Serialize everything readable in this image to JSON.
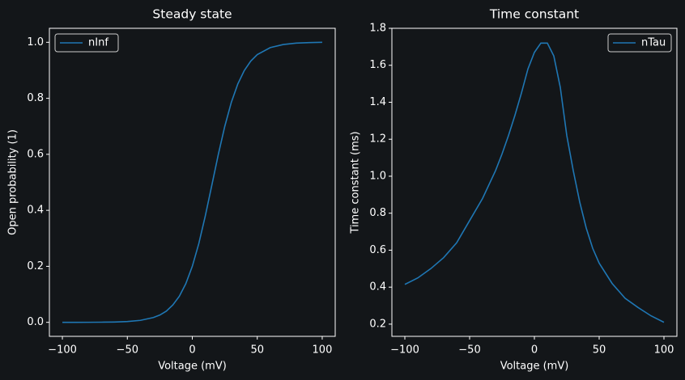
{
  "chart_data": [
    {
      "type": "line",
      "title": "Steady state",
      "xlabel": "Voltage (mV)",
      "ylabel": "Open probability (1)",
      "x": [
        -100,
        -90,
        -80,
        -70,
        -60,
        -50,
        -40,
        -30,
        -25,
        -20,
        -15,
        -10,
        -5,
        0,
        5,
        10,
        15,
        20,
        25,
        30,
        35,
        40,
        45,
        50,
        60,
        70,
        80,
        90,
        100
      ],
      "series": [
        {
          "name": "nInf",
          "color": "#1f77b4",
          "values": [
            0.0,
            0.0001,
            0.0002,
            0.0005,
            0.0012,
            0.0029,
            0.007,
            0.017,
            0.026,
            0.04,
            0.062,
            0.093,
            0.138,
            0.2,
            0.281,
            0.38,
            0.489,
            0.599,
            0.7,
            0.785,
            0.851,
            0.899,
            0.933,
            0.956,
            0.981,
            0.992,
            0.997,
            0.999,
            1.0
          ]
        }
      ],
      "xlim": [
        -110,
        110
      ],
      "xticks": [
        {
          "value": -100,
          "label": "−100"
        },
        {
          "value": -50,
          "label": "−50"
        },
        0,
        50,
        100
      ],
      "ylim": [
        -0.05,
        1.05
      ],
      "yticks": [
        {
          "value": 0,
          "label": "0.0"
        },
        0.2,
        0.4,
        0.6,
        0.8,
        {
          "value": 1,
          "label": "1.0"
        }
      ],
      "legend": "upper left"
    },
    {
      "type": "line",
      "title": "Time constant",
      "xlabel": "Voltage (mV)",
      "ylabel": "Time constant (ms)",
      "x": [
        -100,
        -90,
        -80,
        -70,
        -60,
        -50,
        -40,
        -30,
        -25,
        -20,
        -15,
        -10,
        -5,
        0,
        5,
        10,
        15,
        20,
        25,
        30,
        35,
        40,
        45,
        50,
        60,
        70,
        80,
        90,
        100
      ],
      "series": [
        {
          "name": "nTau",
          "color": "#1f77b4",
          "values": [
            0.415,
            0.45,
            0.5,
            0.56,
            0.64,
            0.76,
            0.88,
            1.03,
            1.12,
            1.22,
            1.33,
            1.45,
            1.58,
            1.67,
            1.72,
            1.72,
            1.65,
            1.48,
            1.22,
            1.03,
            0.86,
            0.72,
            0.61,
            0.53,
            0.42,
            0.34,
            0.29,
            0.245,
            0.21
          ]
        }
      ],
      "xlim": [
        -110,
        110
      ],
      "xticks": [
        {
          "value": -100,
          "label": "−100"
        },
        {
          "value": -50,
          "label": "−50"
        },
        0,
        50,
        100
      ],
      "ylim": [
        0.134,
        1.8
      ],
      "yticks": [
        0.2,
        0.4,
        0.6,
        0.8,
        {
          "value": 1,
          "label": "1.0"
        },
        1.2,
        1.4,
        1.6,
        1.8
      ],
      "legend": "upper right"
    }
  ]
}
